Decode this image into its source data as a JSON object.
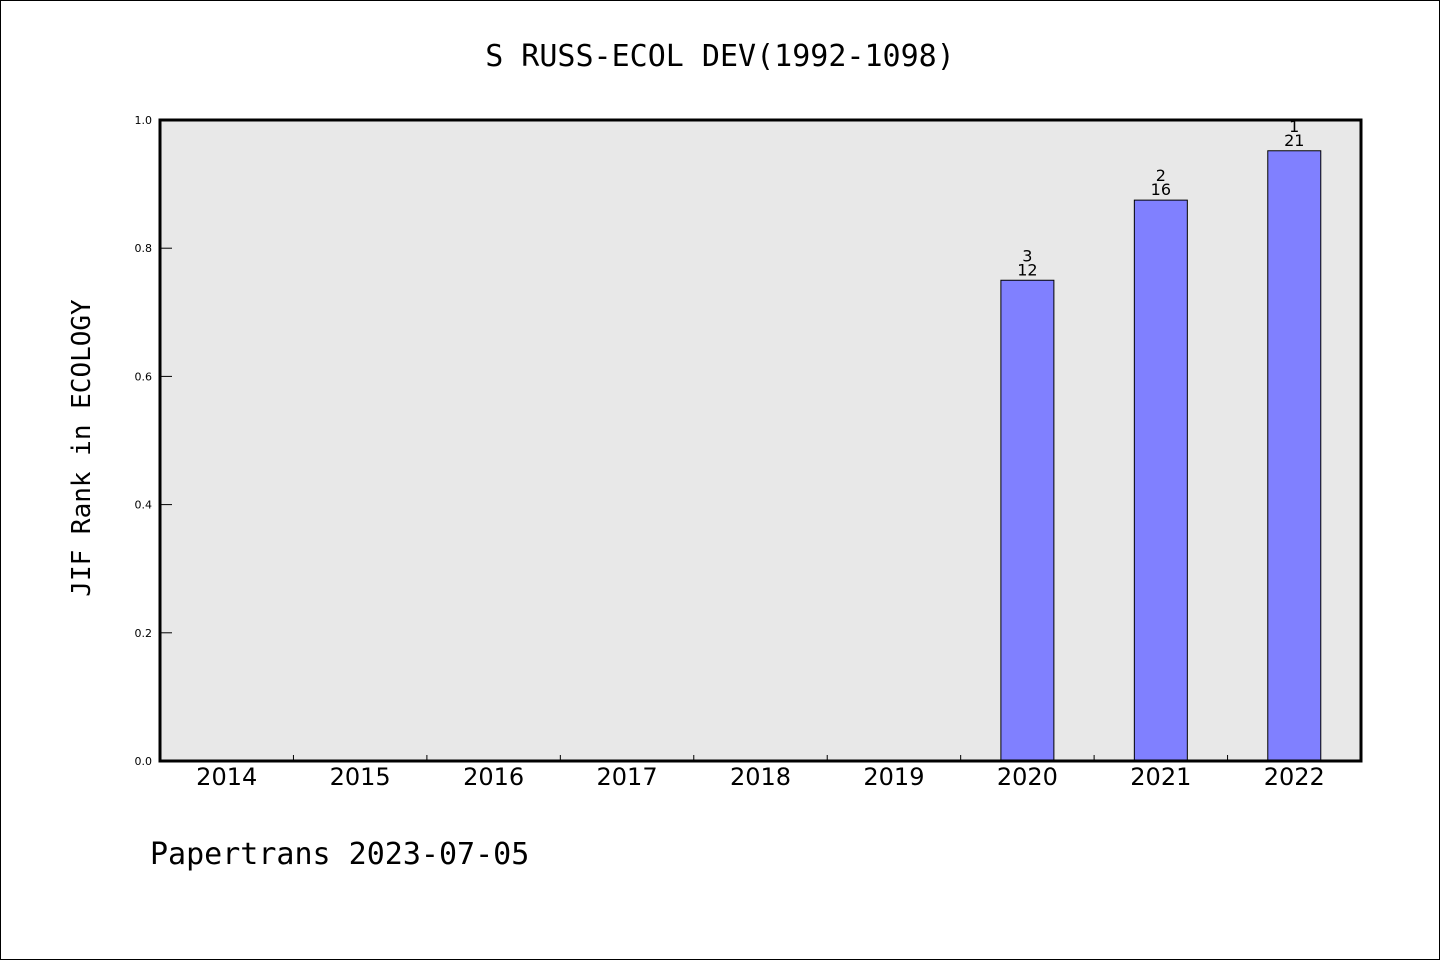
{
  "chart_data": {
    "type": "bar",
    "title": "S RUSS-ECOL DEV(1992-1098)",
    "ylabel": "JIF Rank in ECOLOGY",
    "xlabel": "",
    "categories": [
      "2014",
      "2015",
      "2016",
      "2017",
      "2018",
      "2019",
      "2020",
      "2021",
      "2022"
    ],
    "values": [
      null,
      null,
      null,
      null,
      null,
      null,
      0.75,
      0.875,
      0.952
    ],
    "rank_labels": [
      "",
      "",
      "",
      "",
      "",
      "",
      "3",
      "2",
      "1"
    ],
    "count_labels": [
      "",
      "",
      "",
      "",
      "",
      "",
      "12",
      "16",
      "21"
    ],
    "ylim": [
      0,
      1
    ],
    "yticks": [
      "0.0",
      "0.2",
      "0.4",
      "0.6",
      "0.8",
      "1.0"
    ],
    "grid": false,
    "colors": {
      "bar": "#8080ff",
      "plot_bg": "#e8e8e8"
    }
  },
  "footer": "Papertrans 2023-07-05"
}
